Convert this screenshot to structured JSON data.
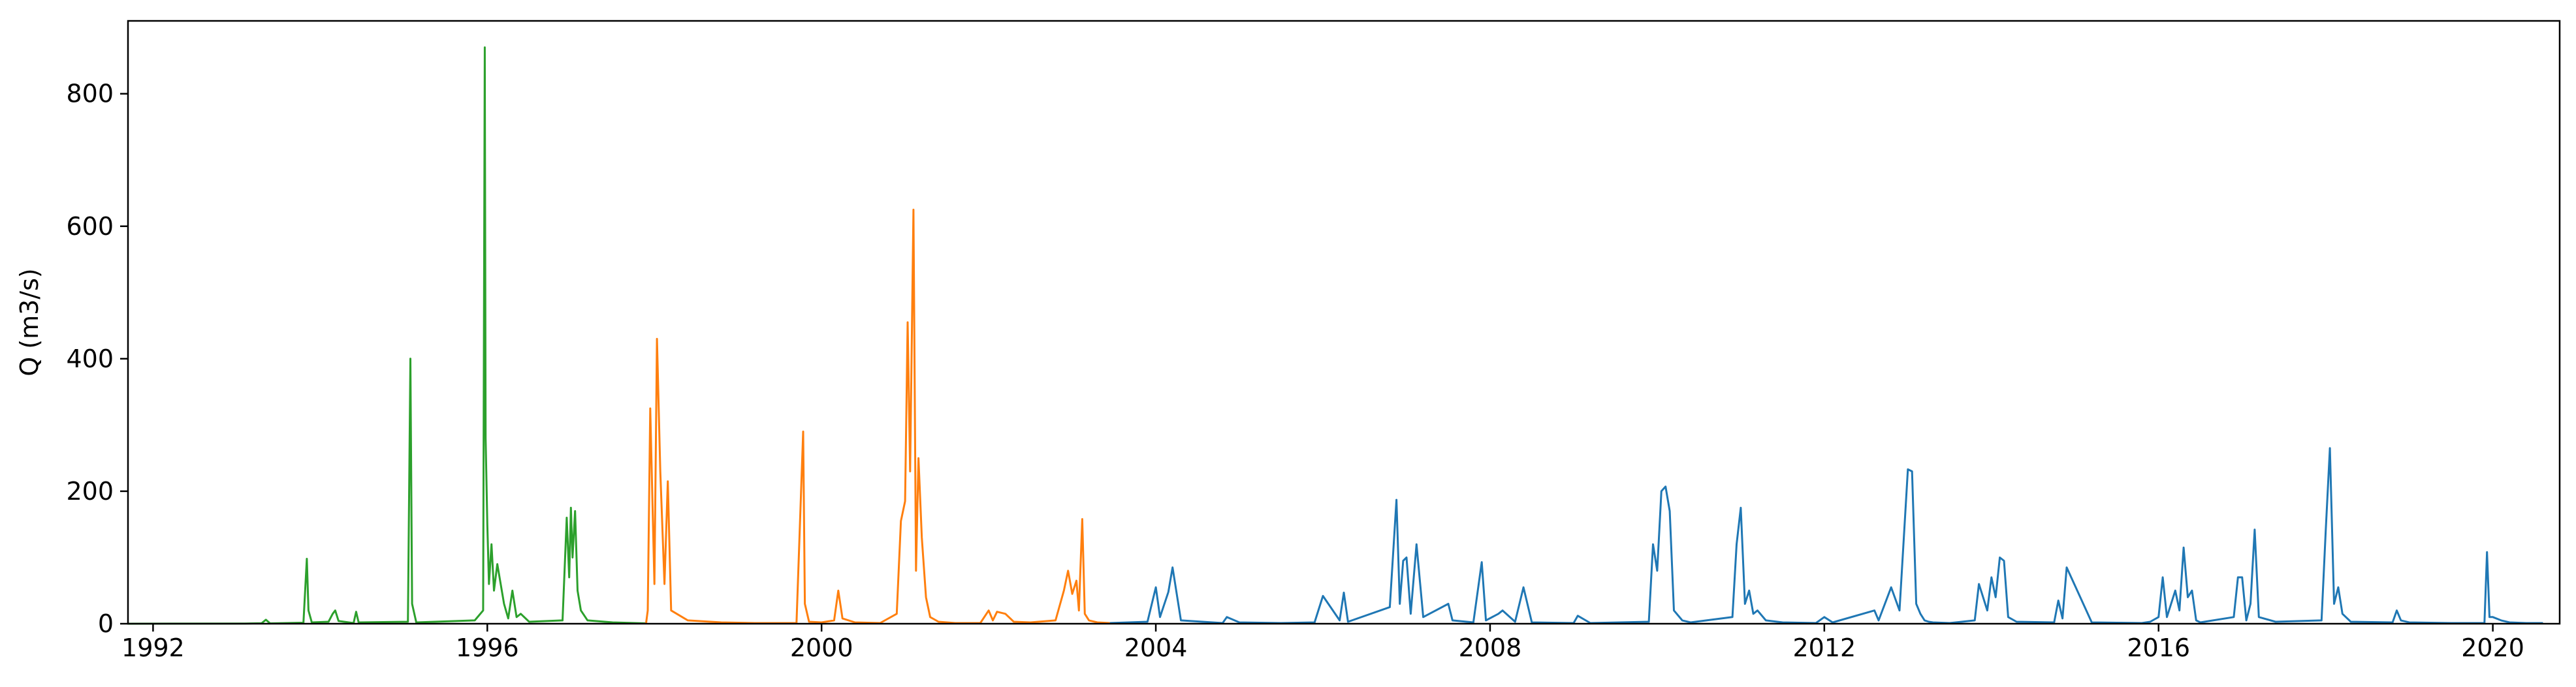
{
  "chart_data": {
    "type": "line",
    "title": "",
    "xlabel": "",
    "ylabel": "Q (m3/s)",
    "xlim": [
      1991.7,
      2020.8
    ],
    "ylim": [
      0,
      910
    ],
    "xticks": [
      "1992",
      "1996",
      "2000",
      "2004",
      "2008",
      "2012",
      "2016",
      "2020"
    ],
    "yticks": [
      "0",
      "200",
      "400",
      "600",
      "800"
    ],
    "grid": false,
    "legend": "none",
    "series": [
      {
        "color": "#2ca02c",
        "x": [
          1991.7,
          1993.1,
          1993.3,
          1993.35,
          1993.4,
          1993.8,
          1993.84,
          1993.86,
          1993.9,
          1994.1,
          1994.15,
          1994.18,
          1994.22,
          1994.4,
          1994.43,
          1994.46,
          1995.05,
          1995.08,
          1995.1,
          1995.15,
          1995.85,
          1995.95,
          1995.97,
          1995.98,
          1996.0,
          1996.02,
          1996.05,
          1996.08,
          1996.12,
          1996.2,
          1996.25,
          1996.3,
          1996.35,
          1996.4,
          1996.5,
          1996.9,
          1996.95,
          1996.98,
          1997.0,
          1997.02,
          1997.05,
          1997.08,
          1997.12,
          1997.2,
          1997.5,
          1997.9
        ],
        "y": [
          0,
          0.3,
          0.8,
          6,
          0.5,
          1.5,
          98,
          20,
          2,
          3,
          15,
          20,
          4,
          1,
          18,
          2,
          3,
          400,
          30,
          2,
          5,
          20,
          870,
          280,
          150,
          60,
          120,
          50,
          90,
          30,
          8,
          50,
          10,
          15,
          3,
          5,
          160,
          70,
          175,
          100,
          170,
          50,
          20,
          5,
          2,
          0.5
        ]
      },
      {
        "color": "#ff7f0e",
        "x": [
          1997.9,
          1997.92,
          1997.95,
          1998.0,
          1998.03,
          1998.07,
          1998.12,
          1998.16,
          1998.2,
          1998.4,
          1998.8,
          1999.2,
          1999.7,
          1999.78,
          1999.8,
          1999.85,
          2000.0,
          2000.15,
          2000.2,
          2000.25,
          2000.4,
          2000.7,
          2000.9,
          2000.95,
          2001.0,
          2001.03,
          2001.06,
          2001.1,
          2001.13,
          2001.16,
          2001.2,
          2001.25,
          2001.3,
          2001.4,
          2001.6,
          2001.9,
          2002.0,
          2002.05,
          2002.1,
          2002.2,
          2002.3,
          2002.5,
          2002.8,
          2002.9,
          2002.95,
          2003.0,
          2003.05,
          2003.08,
          2003.12,
          2003.15,
          2003.2,
          2003.3,
          2003.45
        ],
        "y": [
          0.5,
          20,
          325,
          60,
          430,
          230,
          60,
          215,
          20,
          5,
          2,
          1,
          1,
          290,
          30,
          3,
          2,
          5,
          50,
          8,
          2,
          1,
          15,
          155,
          185,
          455,
          230,
          625,
          80,
          250,
          130,
          40,
          10,
          3,
          1,
          1,
          20,
          5,
          18,
          15,
          3,
          2,
          5,
          50,
          80,
          45,
          65,
          20,
          158,
          15,
          5,
          2,
          1
        ]
      },
      {
        "color": "#1f77b4",
        "x": [
          2003.45,
          2003.9,
          2004.0,
          2004.05,
          2004.15,
          2004.2,
          2004.3,
          2004.8,
          2004.85,
          2005.0,
          2005.5,
          2005.9,
          2006.0,
          2006.2,
          2006.25,
          2006.3,
          2006.8,
          2006.88,
          2006.92,
          2006.96,
          2007.0,
          2007.05,
          2007.12,
          2007.2,
          2007.5,
          2007.55,
          2007.8,
          2007.9,
          2007.95,
          2008.1,
          2008.15,
          2008.3,
          2008.4,
          2008.5,
          2009.0,
          2009.05,
          2009.2,
          2009.9,
          2009.95,
          2010.0,
          2010.05,
          2010.1,
          2010.15,
          2010.2,
          2010.3,
          2010.4,
          2010.9,
          2010.95,
          2011.0,
          2011.05,
          2011.1,
          2011.15,
          2011.2,
          2011.3,
          2011.5,
          2011.9,
          2012.0,
          2012.1,
          2012.6,
          2012.65,
          2012.8,
          2012.9,
          2013.0,
          2013.05,
          2013.1,
          2013.15,
          2013.2,
          2013.25,
          2013.3,
          2013.5,
          2013.8,
          2013.85,
          2013.95,
          2014.0,
          2014.05,
          2014.1,
          2014.15,
          2014.2,
          2014.3,
          2014.75,
          2014.8,
          2014.85,
          2014.9,
          2015.2,
          2015.8,
          2015.9,
          2016.0,
          2016.05,
          2016.1,
          2016.2,
          2016.25,
          2016.3,
          2016.35,
          2016.4,
          2016.45,
          2016.5,
          2016.9,
          2016.95,
          2017.0,
          2017.05,
          2017.1,
          2017.15,
          2017.2,
          2017.4,
          2017.95,
          2018.0,
          2018.05,
          2018.1,
          2018.15,
          2018.2,
          2018.3,
          2018.8,
          2018.85,
          2018.9,
          2019.0,
          2019.5,
          2019.9,
          2019.93,
          2019.96,
          2020.0,
          2020.1,
          2020.2,
          2020.4,
          2020.6
        ],
        "y": [
          1,
          3,
          55,
          10,
          48,
          85,
          5,
          1,
          10,
          2,
          1,
          2,
          42,
          5,
          47,
          3,
          25,
          187,
          30,
          95,
          100,
          15,
          120,
          10,
          30,
          5,
          2,
          93,
          5,
          15,
          20,
          3,
          55,
          2,
          1,
          12,
          1,
          3,
          120,
          80,
          200,
          207,
          170,
          20,
          5,
          2,
          10,
          120,
          175,
          30,
          50,
          15,
          20,
          5,
          2,
          1,
          10,
          2,
          20,
          5,
          55,
          20,
          233,
          230,
          30,
          15,
          5,
          3,
          2,
          1,
          5,
          60,
          20,
          70,
          40,
          100,
          95,
          10,
          3,
          2,
          35,
          8,
          85,
          2,
          1,
          3,
          10,
          70,
          10,
          50,
          20,
          115,
          40,
          50,
          5,
          2,
          10,
          70,
          70,
          5,
          30,
          142,
          10,
          3,
          5,
          140,
          265,
          30,
          55,
          15,
          3,
          2,
          20,
          5,
          2,
          1,
          1,
          108,
          10,
          10,
          5,
          2,
          1,
          1
        ]
      }
    ]
  }
}
